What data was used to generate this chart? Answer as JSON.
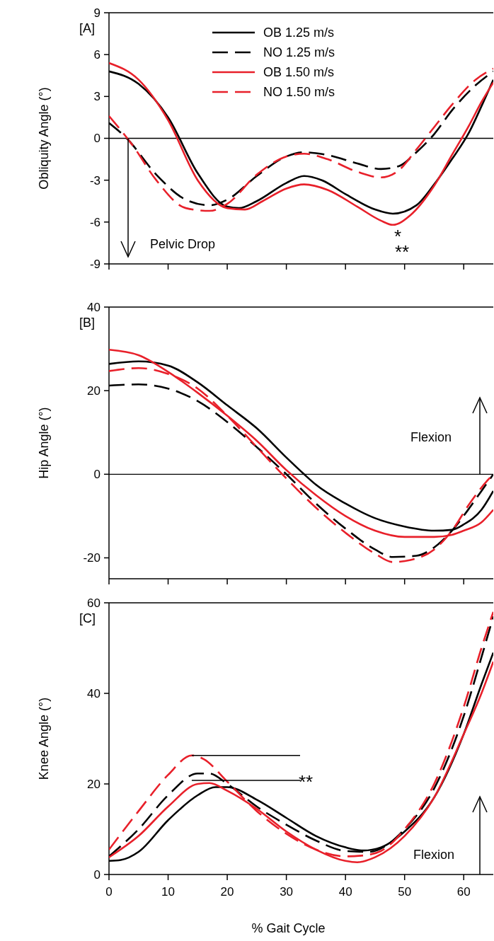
{
  "chart_data": [
    {
      "type": "line",
      "ylabel": "Obliquity Angle (°)",
      "xlim": [
        0,
        65
      ],
      "xticks": [
        0,
        10,
        20,
        30,
        40,
        50,
        60
      ],
      "ylim": [
        -9,
        9
      ],
      "yticks": [
        -9,
        -6,
        -3,
        0,
        3,
        6,
        9
      ],
      "tick_labels": "y",
      "legend": "top",
      "ref_lines": [
        {
          "axis": "y",
          "value": 0
        }
      ],
      "annotations": [
        "[A]",
        "Pelvic Drop",
        "*",
        "**"
      ],
      "series": [
        {
          "name": "OB 1.25 m/s",
          "color": "#000000",
          "line_style": "solid",
          "x": [
            0,
            5,
            10,
            15,
            20,
            22,
            25,
            30,
            33,
            36,
            40,
            45,
            48,
            52,
            55,
            58,
            61,
            63,
            65
          ],
          "values": [
            4.8,
            3.9,
            1.5,
            -2.5,
            -4.9,
            -5.0,
            -4.5,
            -3.2,
            -2.7,
            -3.0,
            -4.0,
            -5.1,
            -5.4,
            -4.8,
            -3.3,
            -1.5,
            0.5,
            2.3,
            4.2
          ]
        },
        {
          "name": "NO 1.25 m/s",
          "color": "#000000",
          "line_style": "dashed",
          "x": [
            0,
            3,
            8,
            13,
            17,
            20,
            25,
            30,
            33,
            37,
            42,
            46,
            49,
            52,
            55,
            58,
            62,
            65
          ],
          "values": [
            1.1,
            0,
            -2.6,
            -4.4,
            -4.8,
            -4.4,
            -2.7,
            -1.3,
            -1.0,
            -1.2,
            -1.8,
            -2.2,
            -2.0,
            -1.0,
            0.3,
            2.0,
            3.8,
            4.8
          ]
        },
        {
          "name": "OB 1.50 m/s",
          "color": "#e8202a",
          "line_style": "solid",
          "x": [
            0,
            5,
            10,
            15,
            20,
            23,
            26,
            30,
            33,
            37,
            42,
            46,
            48,
            51,
            55,
            58,
            61,
            63,
            65
          ],
          "values": [
            5.4,
            4.2,
            1.3,
            -3.0,
            -5.0,
            -5.1,
            -4.5,
            -3.6,
            -3.3,
            -3.7,
            -4.9,
            -5.9,
            -6.2,
            -5.5,
            -3.4,
            -1.2,
            1.0,
            2.6,
            4.0
          ]
        },
        {
          "name": "NO 1.50 m/s",
          "color": "#e8202a",
          "line_style": "dashed",
          "x": [
            0,
            4,
            8,
            13,
            17,
            20,
            25,
            30,
            33,
            37,
            42,
            46,
            49,
            52,
            55,
            58,
            62,
            65
          ],
          "values": [
            1.6,
            -0.5,
            -3.0,
            -5.0,
            -5.2,
            -4.7,
            -2.6,
            -1.3,
            -1.1,
            -1.5,
            -2.4,
            -2.8,
            -2.3,
            -0.8,
            0.8,
            2.4,
            4.2,
            5.0
          ]
        }
      ]
    },
    {
      "type": "line",
      "ylabel": "Hip Angle (°)",
      "xlim": [
        0,
        65
      ],
      "xticks": [
        0,
        10,
        20,
        30,
        40,
        50,
        60
      ],
      "ylim": [
        -25,
        40
      ],
      "yticks": [
        -20,
        0,
        20,
        40
      ],
      "tick_labels": "y",
      "legend": false,
      "ref_lines": [
        {
          "axis": "y",
          "value": 0
        }
      ],
      "annotations": [
        "[B]",
        "Flexion"
      ],
      "series": [
        {
          "color": "#000000",
          "line_style": "solid",
          "x": [
            0,
            5,
            10,
            15,
            20,
            25,
            30,
            33,
            35,
            40,
            45,
            50,
            55,
            58,
            60,
            63,
            65
          ],
          "values": [
            26.4,
            27.0,
            26.0,
            22.0,
            16.5,
            11,
            4,
            0,
            -2.5,
            -7,
            -10.5,
            -12.5,
            -13.5,
            -13.3,
            -12,
            -8.5,
            -4
          ]
        },
        {
          "color": "#000000",
          "line_style": "dashed",
          "x": [
            0,
            5,
            10,
            15,
            20,
            25,
            30,
            35,
            40,
            45,
            48,
            52,
            55,
            58,
            61,
            63,
            65
          ],
          "values": [
            21.2,
            21.5,
            20.5,
            17.5,
            12.5,
            6.5,
            0,
            -7,
            -13,
            -18,
            -19.8,
            -19.5,
            -17.5,
            -13.5,
            -8,
            -4,
            0
          ]
        },
        {
          "color": "#e8202a",
          "line_style": "solid",
          "x": [
            0,
            5,
            10,
            15,
            20,
            25,
            30,
            35,
            40,
            45,
            50,
            55,
            58,
            60,
            63,
            65
          ],
          "values": [
            29.8,
            28.5,
            24.5,
            19.5,
            14,
            8,
            1,
            -5,
            -10,
            -13.5,
            -15,
            -15,
            -14.5,
            -13.5,
            -11.5,
            -8.5
          ]
        },
        {
          "color": "#e8202a",
          "line_style": "dashed",
          "x": [
            0,
            5,
            10,
            15,
            20,
            25,
            30,
            35,
            40,
            45,
            48,
            51,
            55,
            58,
            61,
            64,
            65
          ],
          "values": [
            24.7,
            25.4,
            24,
            20.5,
            14,
            6.5,
            -1,
            -8,
            -14,
            -19,
            -21,
            -20.5,
            -18,
            -13.5,
            -7,
            -1.5,
            0
          ]
        }
      ]
    },
    {
      "type": "line",
      "xlabel": "% Gait Cycle",
      "ylabel": "Knee Angle (°)",
      "xlim": [
        0,
        65
      ],
      "xticks": [
        0,
        10,
        20,
        30,
        40,
        50,
        60
      ],
      "ylim": [
        0,
        60
      ],
      "yticks": [
        0,
        20,
        40,
        60
      ],
      "legend": false,
      "annotations": [
        "[C]",
        {
          "text": "**",
          "x": 14,
          "y": 26.3
        },
        "Flexion"
      ],
      "series": [
        {
          "color": "#000000",
          "line_style": "solid",
          "x": [
            0,
            2,
            5,
            10,
            15,
            18,
            20,
            25,
            30,
            35,
            40,
            43,
            46,
            50,
            55,
            60,
            63,
            65
          ],
          "values": [
            3,
            3.2,
            5,
            12,
            17.5,
            19.3,
            19.3,
            16.5,
            12.5,
            8.5,
            6,
            5.3,
            6,
            9.5,
            17,
            31,
            42,
            49
          ]
        },
        {
          "color": "#000000",
          "line_style": "dashed",
          "x": [
            0,
            5,
            10,
            15,
            17,
            20,
            25,
            30,
            35,
            40,
            44,
            47,
            50,
            55,
            60,
            63,
            65
          ],
          "values": [
            4,
            10,
            17.5,
            22.3,
            22.3,
            20,
            15,
            11,
            7.5,
            5.2,
            5,
            6.5,
            10,
            19,
            35,
            48,
            57
          ]
        },
        {
          "color": "#e8202a",
          "line_style": "solid",
          "x": [
            0,
            5,
            10,
            15,
            17,
            20,
            25,
            30,
            35,
            40,
            42,
            45,
            50,
            55,
            60,
            63,
            65
          ],
          "values": [
            3.8,
            8.5,
            15,
            20,
            20.2,
            18.5,
            14.5,
            9.5,
            5.5,
            3,
            2.7,
            3.8,
            8.5,
            17,
            31,
            40,
            47
          ]
        },
        {
          "color": "#e8202a",
          "line_style": "dashed",
          "x": [
            0,
            5,
            10,
            14,
            16,
            20,
            25,
            30,
            35,
            40,
            43,
            46,
            50,
            55,
            60,
            63,
            65
          ],
          "values": [
            5.5,
            14,
            22,
            26.3,
            25.5,
            20.5,
            14,
            9,
            5.5,
            4,
            4.2,
            5.2,
            10,
            20,
            37,
            50,
            58
          ]
        }
      ]
    }
  ]
}
